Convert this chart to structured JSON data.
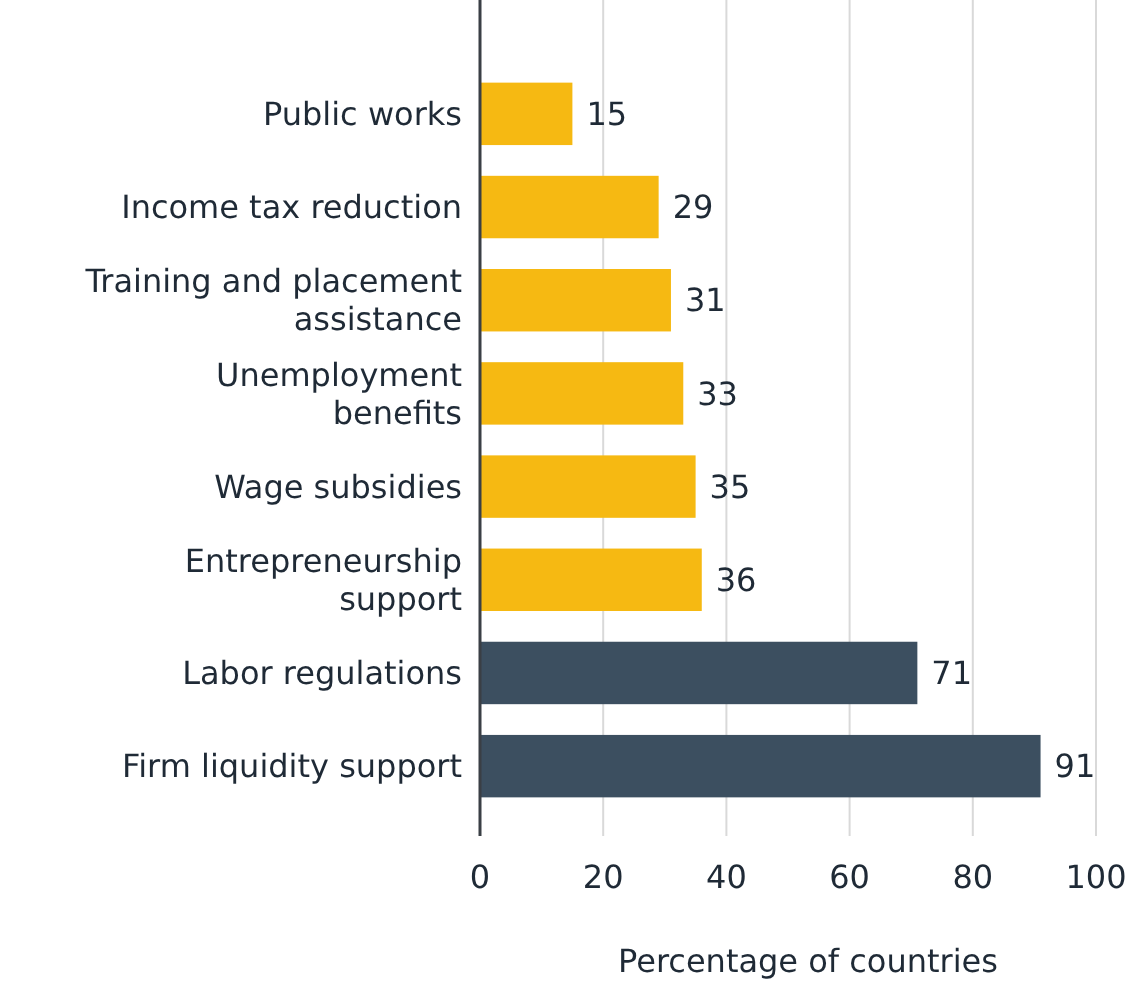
{
  "chart_data": {
    "type": "bar",
    "orientation": "horizontal",
    "categories": [
      "Public works",
      "Income tax reduction",
      "Training and placement\nassistance",
      "Unemployment\nbenefits",
      "Wage subsidies",
      "Entrepreneurship\nsupport",
      "Labor regulations",
      "Firm liquidity support"
    ],
    "values": [
      15,
      29,
      31,
      33,
      35,
      36,
      71,
      91
    ],
    "colors": [
      "#f6b912",
      "#f6b912",
      "#f6b912",
      "#f6b912",
      "#f6b912",
      "#f6b912",
      "#3c4f60",
      "#3c4f60"
    ],
    "xlim": [
      0,
      100
    ],
    "xticks": [
      0,
      20,
      40,
      60,
      80,
      100
    ],
    "xlabel": "Percentage of countries",
    "grid": "x",
    "data_labels": true
  }
}
